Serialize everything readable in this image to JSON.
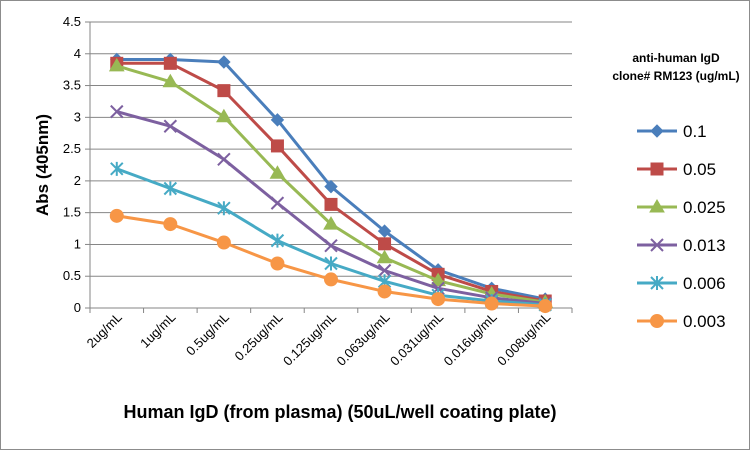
{
  "chart_data": {
    "type": "line",
    "categories": [
      "2ug/mL",
      "1ug/mL",
      "0.5ug/mL",
      "0.25ug/mL",
      "0.125ug/mL",
      "0.063ug/mL",
      "0.031ug/mL",
      "0.016ug/mL",
      "0.008ug/mL"
    ],
    "ylabel": "Abs (405nm)",
    "xlabel": "Human IgD (from plasma) (50uL/well coating plate)",
    "ylim": [
      0,
      4.5
    ],
    "yticks": [
      "0",
      "0.5",
      "1",
      "1.5",
      "2",
      "2.5",
      "3",
      "3.5",
      "4",
      "4.5"
    ],
    "grid": "horizontal",
    "legend": {
      "placement": "right",
      "title_line1": "anti-human IgD",
      "title_line2": "clone# RM123 (ug/mL)"
    },
    "series": [
      {
        "name": "0.1",
        "color": "#4a7ebb",
        "marker": "diamond",
        "values": [
          3.91,
          3.91,
          3.87,
          2.96,
          1.91,
          1.21,
          0.6,
          0.31,
          0.14
        ]
      },
      {
        "name": "0.05",
        "color": "#be4b48",
        "marker": "square",
        "values": [
          3.85,
          3.85,
          3.42,
          2.55,
          1.63,
          1.01,
          0.53,
          0.26,
          0.11
        ]
      },
      {
        "name": "0.025",
        "color": "#98b954",
        "marker": "triangle",
        "values": [
          3.81,
          3.56,
          3.01,
          2.12,
          1.32,
          0.79,
          0.43,
          0.22,
          0.09
        ]
      },
      {
        "name": "0.013",
        "color": "#7d60a0",
        "marker": "x",
        "values": [
          3.09,
          2.86,
          2.34,
          1.65,
          0.98,
          0.59,
          0.31,
          0.16,
          0.07
        ]
      },
      {
        "name": "0.006",
        "color": "#46aac5",
        "marker": "star",
        "values": [
          2.19,
          1.88,
          1.57,
          1.06,
          0.7,
          0.42,
          0.2,
          0.11,
          0.05
        ]
      },
      {
        "name": "0.003",
        "color": "#f79646",
        "marker": "circle",
        "values": [
          1.45,
          1.32,
          1.03,
          0.7,
          0.45,
          0.26,
          0.14,
          0.07,
          0.03
        ]
      }
    ]
  }
}
